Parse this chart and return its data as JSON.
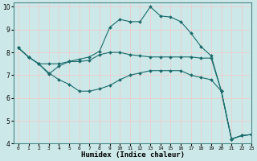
{
  "title": "",
  "xlabel": "Humidex (Indice chaleur)",
  "xlim": [
    -0.5,
    23
  ],
  "ylim": [
    4,
    10.2
  ],
  "background_color": "#cde8e8",
  "grid_color": "#f2c8c8",
  "line_color": "#1a6b6b",
  "xticks": [
    0,
    1,
    2,
    3,
    4,
    5,
    6,
    7,
    8,
    9,
    10,
    11,
    12,
    13,
    14,
    15,
    16,
    17,
    18,
    19,
    20,
    21,
    22,
    23
  ],
  "yticks": [
    4,
    5,
    6,
    7,
    8,
    9,
    10
  ],
  "series": [
    {
      "x": [
        0,
        1,
        2,
        3,
        4,
        5,
        6,
        7,
        8,
        9,
        10,
        11,
        12,
        13,
        14,
        15,
        16,
        17,
        18,
        19,
        20,
        21,
        22,
        23
      ],
      "y": [
        8.2,
        7.8,
        7.5,
        7.5,
        7.5,
        7.6,
        7.7,
        7.8,
        8.05,
        9.1,
        9.45,
        9.35,
        9.35,
        10.0,
        9.6,
        9.55,
        9.35,
        8.85,
        8.25,
        7.85,
        6.3,
        4.2,
        4.35,
        4.4
      ]
    },
    {
      "x": [
        0,
        1,
        2,
        3,
        4,
        5,
        6,
        7,
        8,
        9,
        10,
        11,
        12,
        13,
        14,
        15,
        16,
        17,
        18,
        19,
        20,
        21,
        22,
        23
      ],
      "y": [
        8.2,
        7.8,
        7.5,
        7.05,
        7.4,
        7.6,
        7.6,
        7.65,
        7.9,
        8.0,
        8.0,
        7.9,
        7.85,
        7.8,
        7.8,
        7.8,
        7.8,
        7.8,
        7.75,
        7.75,
        6.3,
        4.2,
        4.35,
        4.4
      ]
    },
    {
      "x": [
        0,
        1,
        2,
        3,
        4,
        5,
        6,
        7,
        8,
        9,
        10,
        11,
        12,
        13,
        14,
        15,
        16,
        17,
        18,
        19,
        20,
        21,
        22,
        23
      ],
      "y": [
        8.2,
        7.8,
        7.5,
        7.1,
        6.8,
        6.6,
        6.3,
        6.3,
        6.4,
        6.55,
        6.8,
        7.0,
        7.1,
        7.2,
        7.2,
        7.2,
        7.2,
        7.0,
        6.9,
        6.8,
        6.3,
        4.2,
        4.35,
        4.4
      ]
    }
  ]
}
